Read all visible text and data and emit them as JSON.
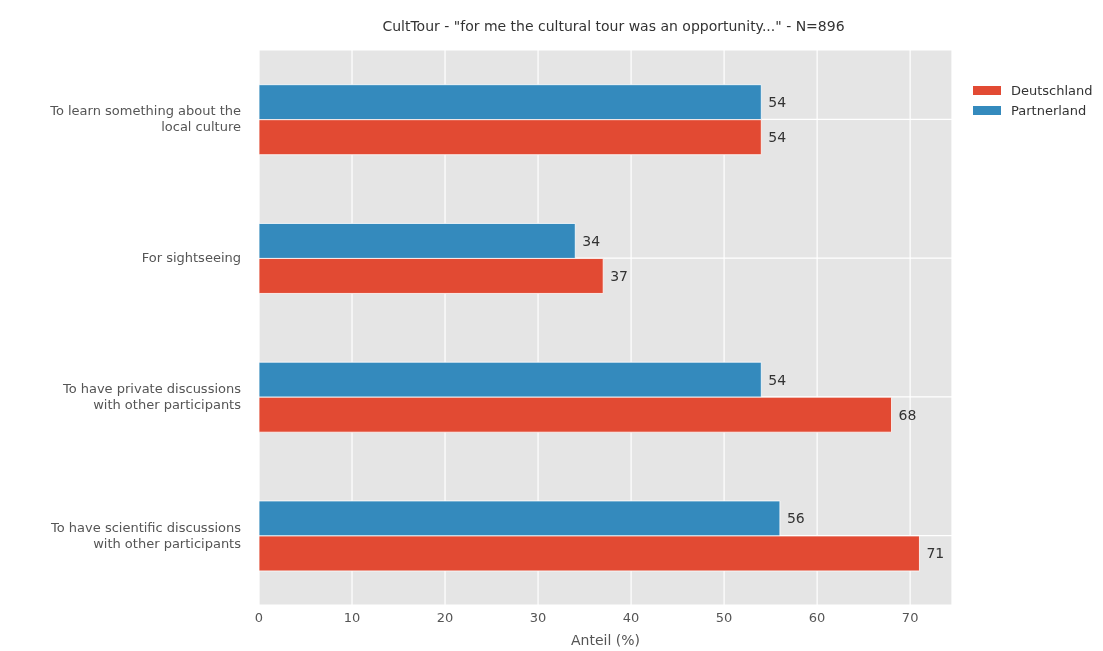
{
  "chart_data": {
    "type": "bar",
    "orientation": "horizontal",
    "title": "CultTour - \"for me the cultural tour was an opportunity...\" - N=896",
    "xlabel": "Anteil (%)",
    "categories": [
      "To learn something about the local culture",
      "For sightseeing",
      "To have private discussions with other participants",
      "To have scientific discussions with other participants"
    ],
    "series": [
      {
        "name": "Deutschland",
        "color": "#e24a33",
        "values": [
          54,
          37,
          68,
          71
        ]
      },
      {
        "name": "Partnerland",
        "color": "#348abd",
        "values": [
          54,
          34,
          54,
          56
        ]
      }
    ],
    "xlim": [
      0,
      74.5
    ],
    "xticks": [
      0,
      10,
      20,
      30,
      40,
      50,
      60,
      70
    ],
    "grid": true,
    "legend": "top right",
    "data_labels": true
  }
}
